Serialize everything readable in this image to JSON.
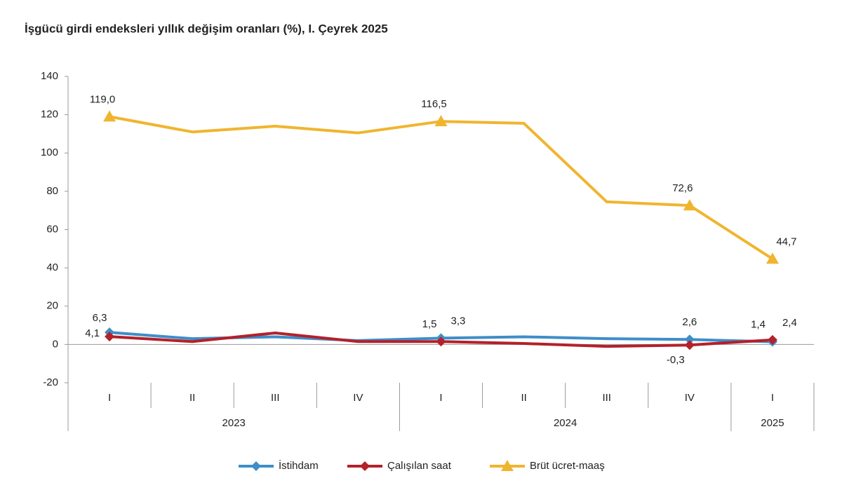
{
  "chart_data": {
    "type": "line",
    "title": "İşgücü girdi endeksleri yıllık değişim oranları (%), I. Çeyrek 2025",
    "categories": [
      "I",
      "II",
      "III",
      "IV",
      "I",
      "II",
      "III",
      "IV",
      "I"
    ],
    "years": [
      "2023",
      null,
      null,
      null,
      "2024",
      null,
      null,
      null,
      "2025"
    ],
    "series": [
      {
        "name": "İstihdam",
        "color": "#3e8ec9",
        "marker": "diamond",
        "values": [
          6.3,
          3,
          4,
          2,
          3.3,
          4,
          3,
          2.6,
          1.4
        ],
        "value_labels": [
          "6,3",
          null,
          null,
          null,
          "3,3",
          null,
          null,
          "2,6",
          "1,4"
        ]
      },
      {
        "name": "Çalışılan saat",
        "color": "#b3212a",
        "marker": "diamond",
        "values": [
          4.1,
          1.5,
          6,
          1.5,
          1.5,
          0.5,
          -1,
          -0.3,
          2.4
        ],
        "value_labels": [
          "4,1",
          null,
          null,
          null,
          "1,5",
          null,
          null,
          "-0,3",
          "2,4"
        ]
      },
      {
        "name": "Brüt ücret-maaş",
        "color": "#f0b52f",
        "marker": "triangle",
        "values": [
          119.0,
          111,
          114,
          110.5,
          116.5,
          115.5,
          74.5,
          72.6,
          44.7
        ],
        "value_labels": [
          "119,0",
          null,
          null,
          null,
          "116,5",
          null,
          null,
          "72,6",
          "44,7"
        ]
      }
    ],
    "ylim": [
      -20,
      140
    ],
    "yticks": [
      -20,
      0,
      20,
      40,
      60,
      80,
      100,
      120,
      140
    ],
    "grid": false,
    "legend": "bottom"
  }
}
